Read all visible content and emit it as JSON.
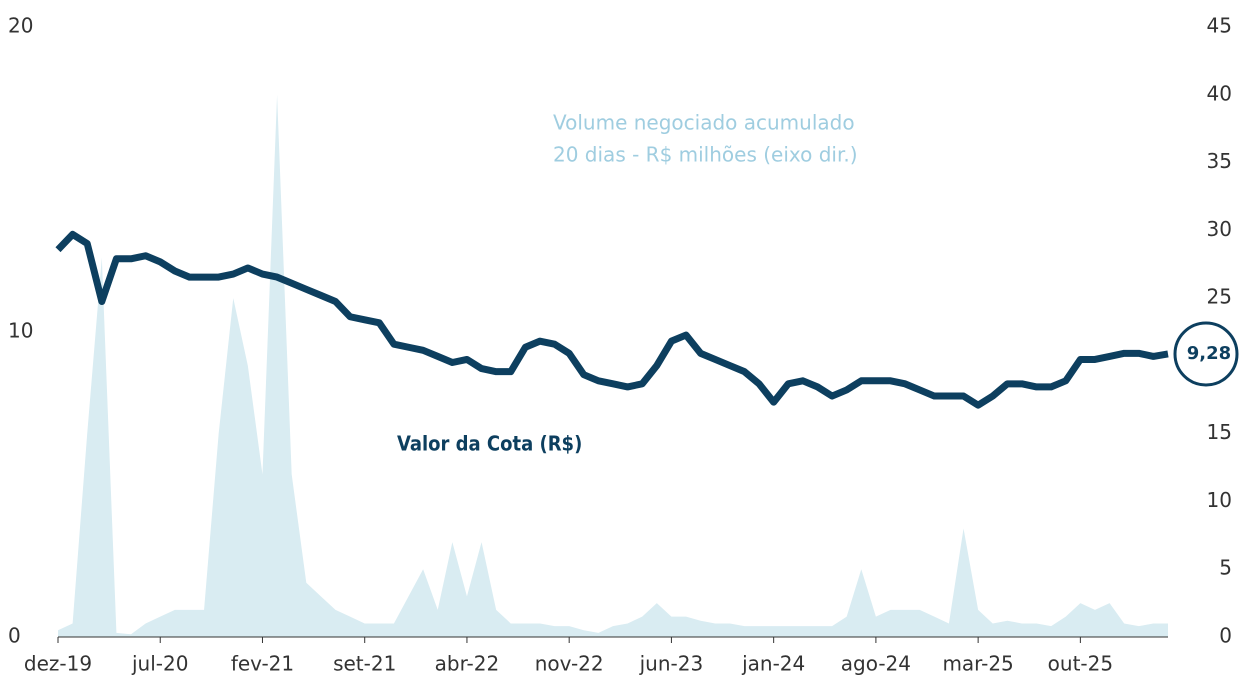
{
  "chart_data": {
    "type": "line",
    "categories": [
      "dez-19",
      null,
      null,
      null,
      null,
      null,
      null,
      "jul-20",
      null,
      null,
      null,
      null,
      null,
      null,
      "fev-21",
      null,
      null,
      null,
      null,
      null,
      null,
      "set-21",
      null,
      null,
      null,
      null,
      null,
      null,
      "abr-22",
      null,
      null,
      null,
      null,
      null,
      null,
      "nov-22",
      null,
      null,
      null,
      null,
      null,
      null,
      "jun-23",
      null,
      null,
      null,
      null,
      null,
      null,
      "jan-24",
      null,
      null,
      null,
      null,
      null,
      null,
      "ago-24",
      null,
      null,
      null,
      null,
      null,
      null,
      "mar-25",
      null,
      null,
      null,
      null,
      null,
      null,
      "out-25",
      null,
      null,
      null,
      null,
      null,
      null
    ],
    "series": [
      {
        "name": "Valor da Cota (R$)",
        "color": "#0d3f5f",
        "axis": "y",
        "values": [
          12.7,
          13.2,
          12.9,
          11.0,
          12.4,
          12.4,
          12.5,
          12.3,
          12.0,
          11.8,
          11.8,
          11.8,
          11.9,
          12.1,
          11.9,
          11.8,
          11.6,
          11.4,
          11.2,
          11.0,
          10.5,
          10.4,
          10.3,
          9.6,
          9.5,
          9.4,
          9.2,
          9.0,
          9.1,
          8.8,
          8.7,
          8.7,
          9.5,
          9.7,
          9.6,
          9.3,
          8.6,
          8.4,
          8.3,
          8.2,
          8.3,
          8.9,
          9.7,
          9.9,
          9.3,
          9.1,
          8.9,
          8.7,
          8.3,
          7.7,
          8.3,
          8.4,
          8.2,
          7.9,
          8.1,
          8.4,
          8.4,
          8.4,
          8.3,
          8.1,
          7.9,
          7.9,
          7.9,
          7.6,
          7.9,
          8.3,
          8.3,
          8.2,
          8.2,
          8.4,
          9.1,
          9.1,
          9.2,
          9.3,
          9.3,
          9.2,
          9.28
        ]
      },
      {
        "name": "Volume negociado acumulado 20 dias - R$ milhões (eixo dir.)",
        "color": "#d9ecf2",
        "axis": "y2",
        "values": [
          0.5,
          1,
          15,
          28,
          0.3,
          0.2,
          1,
          1.5,
          2,
          2,
          2,
          15,
          25,
          20,
          12,
          40,
          12,
          4,
          3,
          2,
          1.5,
          1,
          1,
          1,
          3,
          5,
          2,
          7,
          3,
          7,
          2,
          1,
          1,
          1,
          0.8,
          0.8,
          0.5,
          0.3,
          0.8,
          1,
          1.5,
          2.5,
          1.5,
          1.5,
          1.2,
          1,
          1,
          0.8,
          0.8,
          0.8,
          0.8,
          0.8,
          0.8,
          0.8,
          1.5,
          5,
          1.5,
          2,
          2,
          2,
          1.5,
          1,
          8,
          2,
          1,
          1.2,
          1,
          1,
          0.8,
          1.5,
          2.5,
          2,
          2.5,
          1,
          0.8,
          1,
          1
        ]
      }
    ],
    "annotations": {
      "volume_line1": "Volume negociado acumulado",
      "volume_line2": "20 dias - R$ milhões (eixo dir.)",
      "line_label": "Valor da Cota (R$)"
    },
    "end_label": {
      "value": 9.28,
      "label": "9,28"
    },
    "ylim": [
      0,
      20
    ],
    "yticks": [
      0,
      10,
      20
    ],
    "y2lim": [
      0,
      45
    ],
    "y2ticks": [
      0,
      5,
      10,
      15,
      20,
      25,
      30,
      35,
      40,
      45
    ],
    "grid": false
  }
}
